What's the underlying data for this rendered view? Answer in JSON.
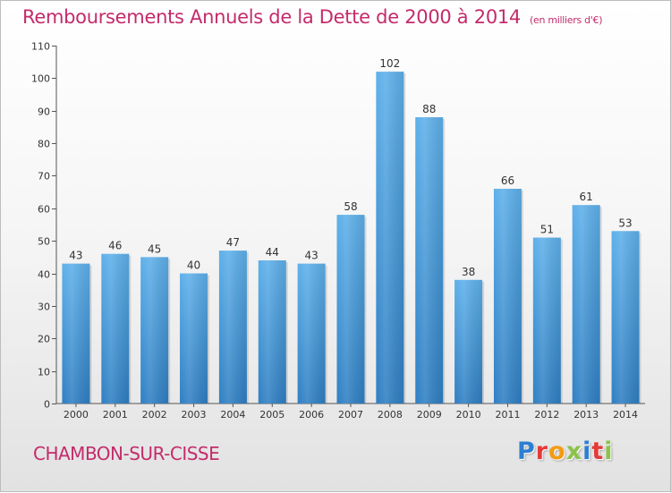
{
  "chart_data": {
    "type": "bar",
    "title": "Remboursements Annuels de la Dette de 2000 à 2014",
    "subtitle": "(en milliers d'€)",
    "xlabel": "",
    "ylabel": "",
    "categories": [
      "2000",
      "2001",
      "2002",
      "2003",
      "2004",
      "2005",
      "2006",
      "2007",
      "2008",
      "2009",
      "2010",
      "2011",
      "2012",
      "2013",
      "2014"
    ],
    "values": [
      43,
      46,
      45,
      40,
      47,
      44,
      43,
      58,
      102,
      88,
      38,
      66,
      51,
      61,
      53
    ],
    "ylim": [
      0,
      110
    ],
    "yticks": [
      0,
      10,
      20,
      30,
      40,
      50,
      60,
      70,
      80,
      90,
      100,
      110
    ],
    "grid": false,
    "bar_color": "#4a9bdb"
  },
  "footer": {
    "city": "CHAMBON-SUR-CISSE",
    "logo_letters": [
      "P",
      "r",
      "o",
      "x",
      "i",
      "t",
      "i"
    ],
    "logo_colors": [
      "#2c7fd1",
      "#e53a3a",
      "#f39c12",
      "#8bc34a",
      "#2c7fd1",
      "#e53a3a",
      "#8bc34a"
    ]
  }
}
